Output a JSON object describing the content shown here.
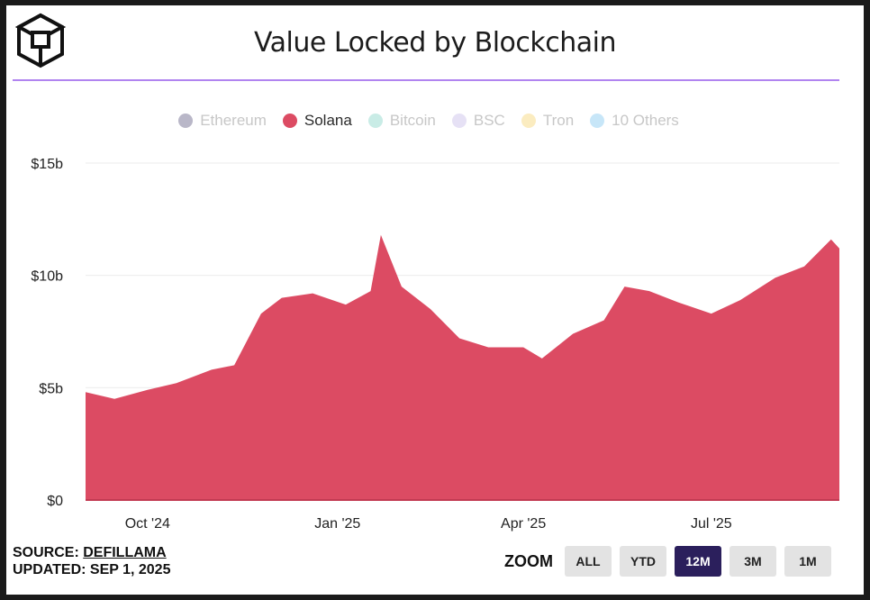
{
  "header": {
    "title": "Value Locked by Blockchain"
  },
  "legend": [
    {
      "label": "Ethereum",
      "color": "#b9b7c8",
      "active": false
    },
    {
      "label": "Solana",
      "color": "#dc4b63",
      "active": true
    },
    {
      "label": "Bitcoin",
      "color": "#c9ece6",
      "active": false
    },
    {
      "label": "BSC",
      "color": "#e6e1f5",
      "active": false
    },
    {
      "label": "Tron",
      "color": "#fbecc0",
      "active": false
    },
    {
      "label": "10 Others",
      "color": "#c7e6f8",
      "active": false
    }
  ],
  "footer": {
    "source_prefix": "SOURCE: ",
    "source_link": "DEFILLAMA",
    "updated": "UPDATED: SEP 1, 2025"
  },
  "zoom": {
    "label": "ZOOM",
    "buttons": [
      "ALL",
      "YTD",
      "12M",
      "3M",
      "1M"
    ],
    "active": "12M"
  },
  "colors": {
    "series": "#dc4b63",
    "accent_rule": "#b184f0",
    "active_button": "#2b1f5c"
  },
  "chart_data": {
    "type": "area",
    "title": "Value Locked by Blockchain",
    "series": [
      {
        "name": "Solana",
        "x": [
          "2024-09-01",
          "2024-09-15",
          "2024-10-01",
          "2024-10-15",
          "2024-11-01",
          "2024-11-12",
          "2024-11-25",
          "2024-12-05",
          "2024-12-20",
          "2025-01-05",
          "2025-01-17",
          "2025-01-22",
          "2025-02-01",
          "2025-02-15",
          "2025-03-01",
          "2025-03-15",
          "2025-04-01",
          "2025-04-10",
          "2025-04-25",
          "2025-05-10",
          "2025-05-20",
          "2025-06-01",
          "2025-06-15",
          "2025-07-01",
          "2025-07-15",
          "2025-08-01",
          "2025-08-15",
          "2025-08-28",
          "2025-09-01"
        ],
        "values": [
          4.8,
          4.5,
          4.9,
          5.2,
          5.8,
          6.0,
          8.3,
          9.0,
          9.2,
          8.7,
          9.3,
          11.8,
          9.5,
          8.5,
          7.2,
          6.8,
          6.8,
          6.3,
          7.4,
          8.0,
          9.5,
          9.3,
          8.8,
          8.3,
          8.9,
          9.9,
          10.4,
          11.6,
          11.2
        ]
      }
    ],
    "xlabel": "",
    "ylabel": "",
    "x_ticks": [
      "Oct '24",
      "Jan '25",
      "Apr '25",
      "Jul '25"
    ],
    "x_tick_dates": [
      "2024-10-01",
      "2025-01-01",
      "2025-04-01",
      "2025-07-01"
    ],
    "y_ticks": [
      "$0",
      "$5b",
      "$10b",
      "$15b"
    ],
    "y_tick_values": [
      0,
      5,
      10,
      15
    ],
    "ylim": [
      0,
      15
    ],
    "xlim": [
      "2024-09-01",
      "2025-09-01"
    ],
    "grid": true
  }
}
